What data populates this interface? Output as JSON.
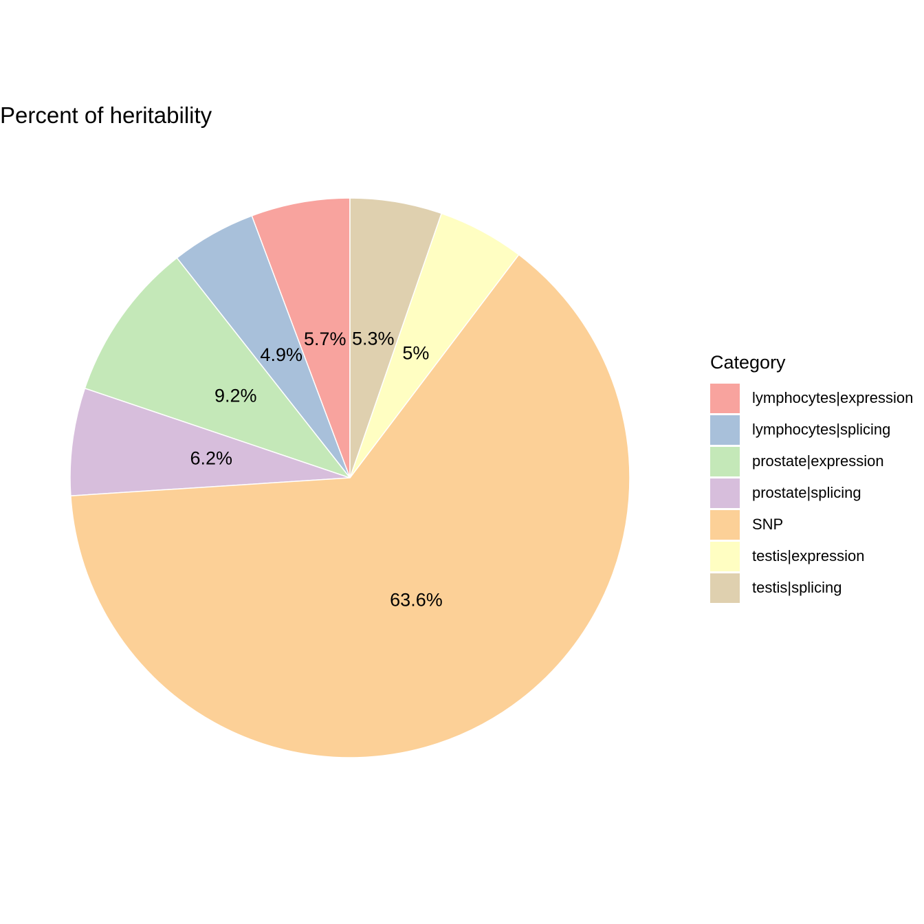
{
  "chart_data": {
    "type": "pie",
    "title": "Percent of heritability",
    "legend_title": "Category",
    "legend_position": "right",
    "start": "12 o'clock",
    "direction": "counter-clockwise",
    "categories": [
      "lymphocytes|expression",
      "lymphocytes|splicing",
      "prostate|expression",
      "prostate|splicing",
      "SNP",
      "testis|expression",
      "testis|splicing"
    ],
    "values": [
      5.7,
      4.9,
      9.2,
      6.2,
      63.6,
      5.0,
      5.3
    ],
    "labels": [
      "5.7%",
      "4.9%",
      "9.2%",
      "6.2%",
      "63.6%",
      "5%",
      "5.3%"
    ],
    "colors": [
      "#F8A39E",
      "#A8C0DA",
      "#C4E8B8",
      "#D7BEDC",
      "#FCD097",
      "#FFFEC2",
      "#DFD0AF"
    ]
  }
}
